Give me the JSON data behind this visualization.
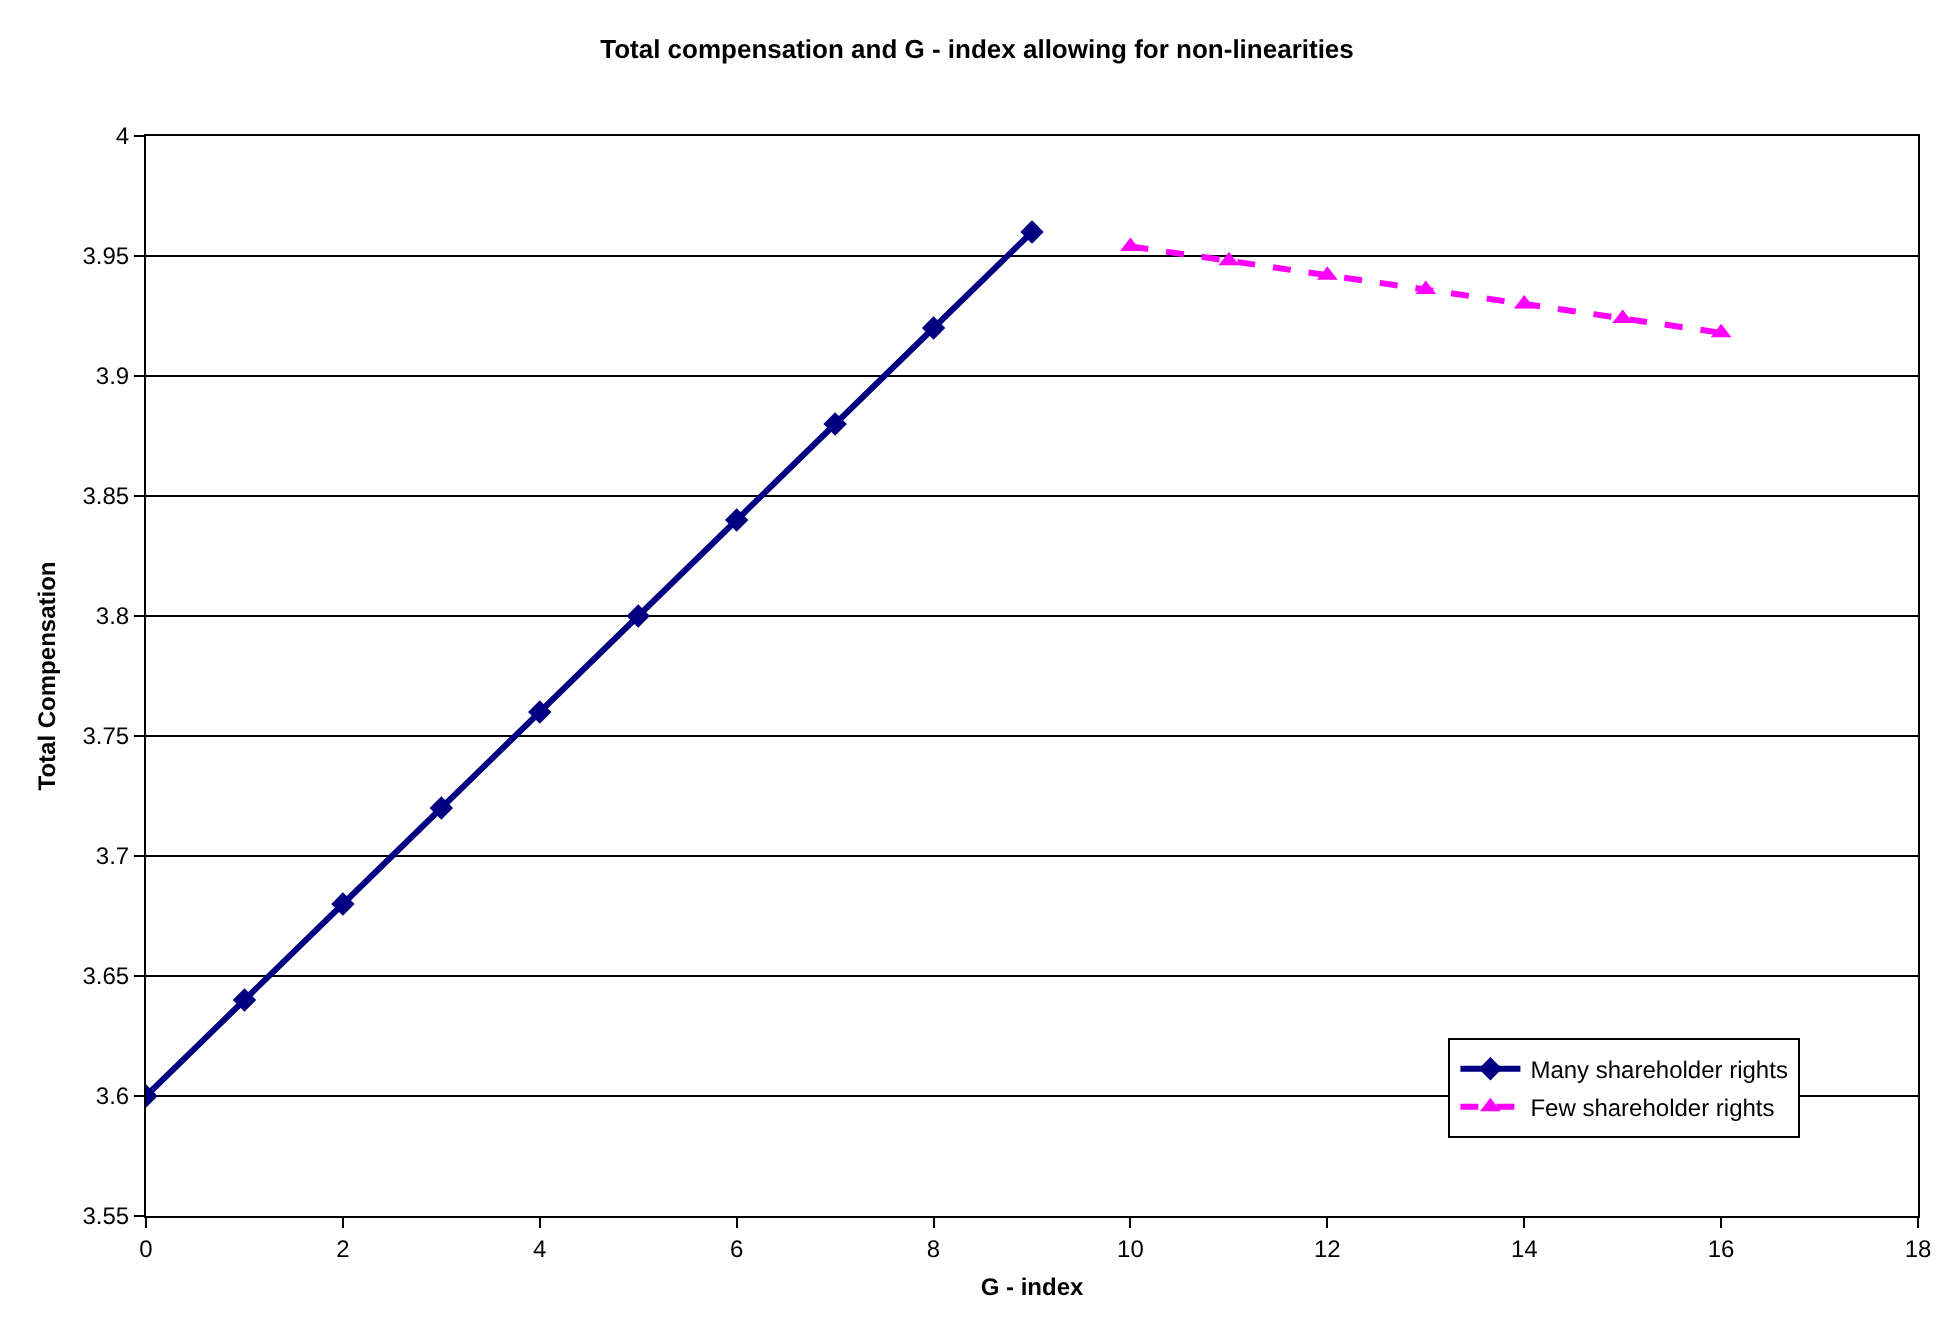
{
  "chart_data": {
    "type": "line",
    "title": "Total compensation and G - index allowing for non-linearities",
    "xlabel": "G - index",
    "ylabel": "Total Compensation",
    "xlim": [
      0,
      18
    ],
    "xticks": [
      0,
      2,
      4,
      6,
      8,
      10,
      12,
      14,
      16,
      18
    ],
    "ylim": [
      3.55,
      4
    ],
    "yticks": [
      3.55,
      3.6,
      3.65,
      3.7,
      3.75,
      3.8,
      3.85,
      3.9,
      3.95,
      4
    ],
    "grid": "y",
    "legend": "bottom right",
    "series": [
      {
        "name": "Many shareholder rights",
        "color": "#000080",
        "marker": "diamond",
        "line_style": "solid",
        "x": [
          0,
          1,
          2,
          3,
          4,
          5,
          6,
          7,
          8,
          9
        ],
        "values": [
          3.6,
          3.64,
          3.68,
          3.72,
          3.76,
          3.8,
          3.84,
          3.88,
          3.92,
          3.96
        ]
      },
      {
        "name": "Few shareholder rights",
        "color": "#ff00ff",
        "marker": "triangle",
        "line_style": "dashed",
        "x": [
          10,
          11,
          12,
          13,
          14,
          15,
          16
        ],
        "values": [
          3.954,
          3.948,
          3.942,
          3.936,
          3.93,
          3.924,
          3.918
        ]
      }
    ]
  }
}
